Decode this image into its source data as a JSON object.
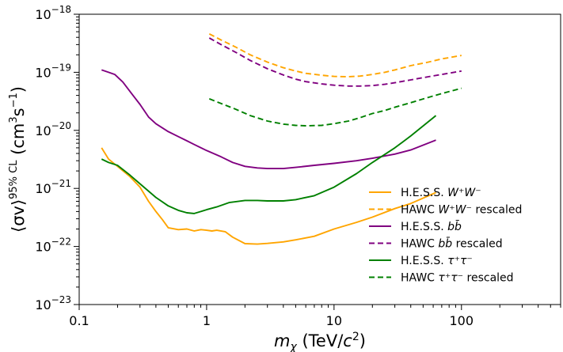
{
  "chart_data": {
    "type": "line",
    "xscale": "log",
    "yscale": "log",
    "xlim": [
      0.1,
      600
    ],
    "ylim": [
      1e-23,
      1e-18
    ],
    "grid": false,
    "legend_position": "lower-right",
    "xlabel_parts": {
      "sym": "m",
      "sub": "χ",
      "open": " (TeV/",
      "c": "c",
      "sup": "2",
      "close": ")"
    },
    "ylabel_parts": {
      "open": "⟨σv⟩",
      "sup": "95% CL",
      "mid": " (cm",
      "sup2": "3",
      "mid2": "s",
      "sup3": "−1",
      "close": ")"
    },
    "x_ticks": [
      {
        "value": 0.1,
        "label": "0.1"
      },
      {
        "value": 1,
        "label": "1"
      },
      {
        "value": 10,
        "label": "10"
      },
      {
        "value": 100,
        "label": "100"
      }
    ],
    "y_ticks": [
      {
        "value": 1e-23,
        "base": "10",
        "exp": "−23"
      },
      {
        "value": 1e-22,
        "base": "10",
        "exp": "−22"
      },
      {
        "value": 1e-21,
        "base": "10",
        "exp": "−21"
      },
      {
        "value": 1e-20,
        "base": "10",
        "exp": "−20"
      },
      {
        "value": 1e-19,
        "base": "10",
        "exp": "−19"
      },
      {
        "value": 1e-18,
        "base": "10",
        "exp": "−18"
      }
    ],
    "series": [
      {
        "name": "H.E.S.S. W⁺W⁻",
        "legend": {
          "pre": "H.E.S.S. ",
          "math": "W⁺W⁻",
          "post": ""
        },
        "color": "#ffa500",
        "dash": "solid",
        "x": [
          0.15,
          0.17,
          0.2,
          0.25,
          0.3,
          0.35,
          0.4,
          0.45,
          0.5,
          0.6,
          0.7,
          0.8,
          0.9,
          1.0,
          1.1,
          1.2,
          1.4,
          1.6,
          2.0,
          2.5,
          3.0,
          4.0,
          5.0,
          7.0,
          10,
          15,
          20,
          30,
          40,
          63
        ],
        "y": [
          5e-21,
          3.2e-21,
          2.4e-21,
          1.6e-21,
          1.05e-21,
          6e-22,
          4e-22,
          2.9e-22,
          2.1e-22,
          1.95e-22,
          2e-22,
          1.85e-22,
          1.95e-22,
          1.9e-22,
          1.85e-22,
          1.9e-22,
          1.8e-22,
          1.45e-22,
          1.12e-22,
          1.1e-22,
          1.13e-22,
          1.2e-22,
          1.3e-22,
          1.5e-22,
          2e-22,
          2.6e-22,
          3.2e-22,
          4.5e-22,
          5.5e-22,
          8.5e-22
        ]
      },
      {
        "name": "HAWC W⁺W⁻ rescaled",
        "legend": {
          "pre": "HAWC ",
          "math": "W⁺W⁻",
          "post": " rescaled"
        },
        "color": "#ffa500",
        "dash": "dashed",
        "x": [
          1.05,
          1.3,
          1.7,
          2.2,
          3.0,
          4.0,
          5.0,
          6.0,
          8.0,
          10,
          13,
          16,
          20,
          25,
          30,
          40,
          55,
          70,
          100
        ],
        "y": [
          4.6e-19,
          3.6e-19,
          2.7e-19,
          2e-19,
          1.5e-19,
          1.2e-19,
          1.05e-19,
          9.6e-20,
          8.9e-20,
          8.5e-20,
          8.4e-20,
          8.6e-20,
          9.2e-20,
          1e-19,
          1.1e-19,
          1.3e-19,
          1.5e-19,
          1.7e-19,
          1.95e-19
        ]
      },
      {
        "name": "H.E.S.S. bb̄",
        "legend": {
          "pre": "H.E.S.S. ",
          "math": "bb̄",
          "post": ""
        },
        "color": "#800080",
        "dash": "solid",
        "x": [
          0.15,
          0.17,
          0.19,
          0.22,
          0.26,
          0.3,
          0.35,
          0.4,
          0.5,
          0.6,
          0.7,
          0.8,
          1.0,
          1.3,
          1.6,
          2.0,
          2.5,
          3.0,
          4.0,
          5.0,
          7.0,
          10,
          15,
          20,
          30,
          40,
          63
        ],
        "y": [
          1.1e-19,
          1e-19,
          9.2e-20,
          6.8e-20,
          4.2e-20,
          2.8e-20,
          1.7e-20,
          1.3e-20,
          9.5e-21,
          7.8e-21,
          6.6e-21,
          5.7e-21,
          4.5e-21,
          3.5e-21,
          2.8e-21,
          2.4e-21,
          2.25e-21,
          2.2e-21,
          2.2e-21,
          2.3e-21,
          2.5e-21,
          2.7e-21,
          3e-21,
          3.3e-21,
          3.9e-21,
          4.6e-21,
          6.8e-21
        ]
      },
      {
        "name": "HAWC bb̄ rescaled",
        "legend": {
          "pre": "HAWC ",
          "math": "bb̄",
          "post": " rescaled"
        },
        "color": "#800080",
        "dash": "dashed",
        "x": [
          1.05,
          1.3,
          1.7,
          2.2,
          3.0,
          4.0,
          5.0,
          6.0,
          8.0,
          10,
          13,
          16,
          20,
          25,
          30,
          40,
          55,
          70,
          100
        ],
        "y": [
          3.9e-19,
          3e-19,
          2.2e-19,
          1.6e-19,
          1.15e-19,
          9e-20,
          7.6e-20,
          6.9e-20,
          6.3e-20,
          6e-20,
          5.8e-20,
          5.8e-20,
          5.9e-20,
          6.2e-20,
          6.6e-20,
          7.4e-20,
          8.4e-20,
          9.2e-20,
          1.05e-19
        ]
      },
      {
        "name": "H.E.S.S. τ⁺τ⁻",
        "legend": {
          "pre": "H.E.S.S. ",
          "math": "τ⁺τ⁻",
          "post": ""
        },
        "color": "#008000",
        "dash": "solid",
        "x": [
          0.15,
          0.17,
          0.2,
          0.25,
          0.3,
          0.4,
          0.5,
          0.6,
          0.7,
          0.8,
          0.9,
          1.0,
          1.2,
          1.5,
          2.0,
          2.5,
          3.0,
          4.0,
          5.0,
          7.0,
          10,
          15,
          20,
          30,
          40,
          63
        ],
        "y": [
          3.2e-21,
          2.8e-21,
          2.5e-21,
          1.7e-21,
          1.2e-21,
          7e-22,
          5e-22,
          4.2e-22,
          3.8e-22,
          3.7e-22,
          4e-22,
          4.3e-22,
          4.8e-22,
          5.7e-22,
          6.2e-22,
          6.2e-22,
          6.1e-22,
          6.1e-22,
          6.4e-22,
          7.5e-22,
          1.05e-21,
          1.8e-21,
          2.8e-21,
          5e-21,
          8e-21,
          1.8e-20
        ]
      },
      {
        "name": "HAWC τ⁺τ⁻ rescaled",
        "legend": {
          "pre": "HAWC ",
          "math": "τ⁺τ⁻",
          "post": " rescaled"
        },
        "color": "#008000",
        "dash": "dashed",
        "x": [
          1.05,
          1.3,
          1.7,
          2.2,
          3.0,
          4.0,
          5.0,
          6.0,
          8.0,
          10,
          13,
          16,
          20,
          25,
          30,
          40,
          55,
          70,
          100
        ],
        "y": [
          3.5e-20,
          2.9e-20,
          2.3e-20,
          1.8e-20,
          1.45e-20,
          1.28e-20,
          1.22e-20,
          1.2e-20,
          1.22e-20,
          1.3e-20,
          1.45e-20,
          1.65e-20,
          1.95e-20,
          2.2e-20,
          2.5e-20,
          3e-20,
          3.7e-20,
          4.3e-20,
          5.3e-20
        ]
      }
    ]
  }
}
